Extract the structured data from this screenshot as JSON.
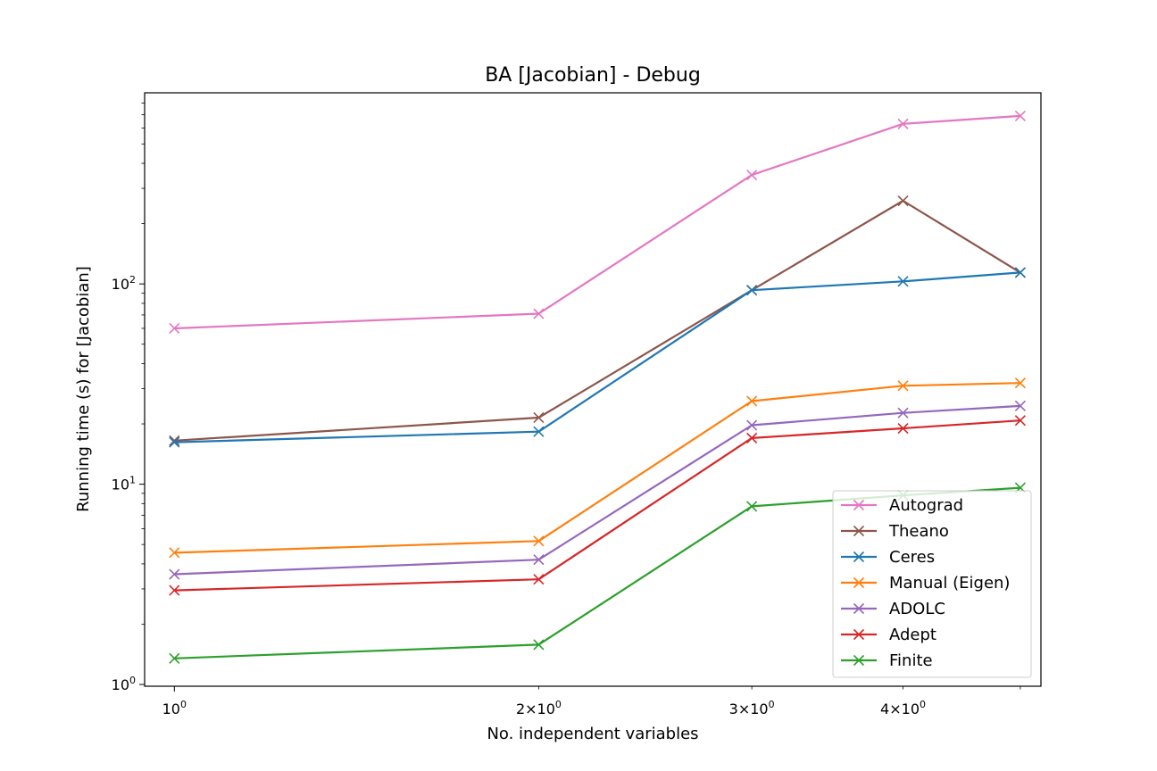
{
  "chart_data": {
    "type": "line",
    "title": "BA [Jacobian] - Debug",
    "xlabel": "No. independent variables",
    "ylabel": "Running time (s) for [Jacobian]",
    "xscale": "log",
    "yscale": "log",
    "xlim": [
      0.945,
      5.2
    ],
    "ylim": [
      0.98,
      900
    ],
    "x": [
      1,
      2,
      3,
      4,
      5
    ],
    "x_ticks": [
      {
        "value": 1,
        "base": "10",
        "exp": "0"
      },
      {
        "value": 2,
        "base": "2×10",
        "exp": "0"
      },
      {
        "value": 3,
        "base": "3×10",
        "exp": "0"
      },
      {
        "value": 4,
        "base": "4×10",
        "exp": "0"
      },
      {
        "value": 5,
        "base": "",
        "exp": ""
      }
    ],
    "y_ticks": [
      {
        "value": 1,
        "base": "10",
        "exp": "0"
      },
      {
        "value": 10,
        "base": "10",
        "exp": "1"
      },
      {
        "value": 100,
        "base": "10",
        "exp": "2"
      }
    ],
    "grid": false,
    "legend_position": "lower-right",
    "marker": "x",
    "series": [
      {
        "name": "Autograd",
        "color": "#e377c2",
        "values": [
          60,
          71,
          350,
          630,
          690
        ]
      },
      {
        "name": "Theano",
        "color": "#8c564b",
        "values": [
          16.5,
          21.5,
          93,
          260,
          114
        ]
      },
      {
        "name": "Ceres",
        "color": "#1f77b4",
        "values": [
          16.2,
          18.3,
          93,
          103,
          114
        ]
      },
      {
        "name": "Manual (Eigen)",
        "color": "#ff7f0e",
        "values": [
          4.55,
          5.2,
          26,
          31,
          32
        ]
      },
      {
        "name": "ADOLC",
        "color": "#9467bd",
        "values": [
          3.55,
          4.2,
          19.7,
          22.7,
          24.6
        ]
      },
      {
        "name": "Adept",
        "color": "#d62728",
        "values": [
          2.95,
          3.35,
          17,
          19,
          20.8
        ]
      },
      {
        "name": "Finite",
        "color": "#2ca02c",
        "values": [
          1.35,
          1.58,
          7.75,
          8.8,
          9.6
        ]
      }
    ]
  }
}
